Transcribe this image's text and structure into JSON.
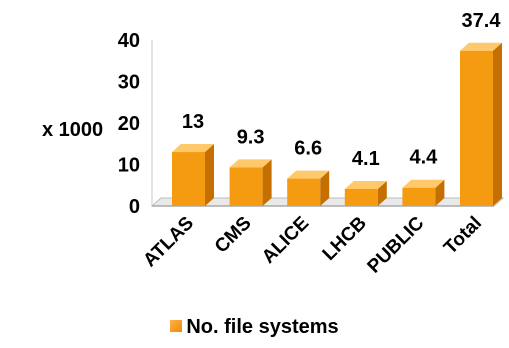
{
  "chart_data": {
    "type": "bar",
    "categories": [
      "ATLAS",
      "CMS",
      "ALICE",
      "LHCB",
      "PUBLIC",
      "Total"
    ],
    "series": [
      {
        "name": "No. file systems",
        "values": [
          13,
          9.3,
          6.6,
          4.1,
          4.4,
          37.4
        ]
      }
    ],
    "data_labels": [
      "13",
      "9.3",
      "6.6",
      "4.1",
      "4.4",
      "37.4"
    ],
    "ylabel": "x 1000",
    "ylim": [
      0,
      40
    ],
    "yticks": [
      "0",
      "10",
      "20",
      "30",
      "40"
    ],
    "grid": false,
    "legend_position": "bottom",
    "colors": {
      "front": "#f49b12",
      "top": "#ffc86a",
      "side": "#c56f00",
      "floor": "#e9e9e9"
    }
  }
}
